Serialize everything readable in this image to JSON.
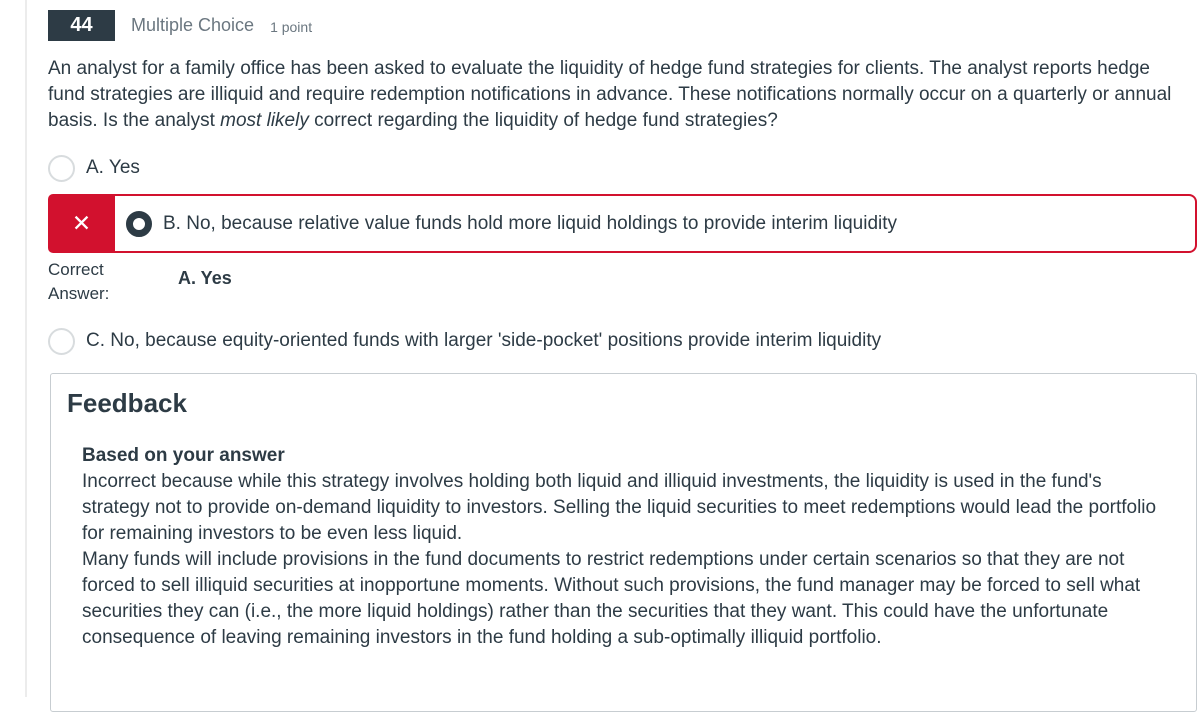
{
  "question_header": {
    "number": "44",
    "type_label": "Multiple Choice",
    "points_label": "1 point"
  },
  "question": {
    "text_before": "An analyst for a family office has been asked to evaluate the liquidity of hedge fund strategies for clients. The analyst reports hedge fund strategies are illiquid and require redemption notifications in advance. These notifications normally occur on a quarterly or annual basis. Is the analyst ",
    "text_italic": "most likely",
    "text_after": " correct regarding the liquidity of hedge fund strategies?"
  },
  "options": {
    "a": {
      "label": "A. Yes",
      "selected": false
    },
    "b": {
      "label": "B. No, because relative value funds hold more liquid holdings to provide interim liquidity",
      "selected": true,
      "status": "incorrect"
    },
    "c": {
      "label": "C. No, because equity-oriented funds with larger 'side-pocket' positions provide interim liquidity",
      "selected": false
    }
  },
  "correct_answer": {
    "label": "Correct Answer:",
    "value": "A. Yes"
  },
  "feedback": {
    "title": "Feedback",
    "subtitle": "Based on your answer",
    "paragraph1": "Incorrect because while this strategy involves holding both liquid and illiquid investments, the liquidity is used in the fund's strategy not to provide on-demand liquidity to investors. Selling the liquid securities to meet redemptions would lead the portfolio for remaining investors to be even less liquid.",
    "paragraph2": "Many funds will include provisions in the fund documents to restrict redemptions under certain scenarios so that they are not forced to sell illiquid securities at inopportune moments. Without such provisions, the fund manager may be forced to sell what securities they can (i.e., the more liquid holdings) rather than the securities that they want. This could have the unfortunate consequence of leaving remaining investors in the fund holding a sub-optimally illiquid portfolio."
  },
  "icons": {
    "incorrect_icon": "✕"
  },
  "colors": {
    "incorrect_red": "#D2112E",
    "badge_background": "#2D3B45",
    "body_text": "#2D3B45",
    "muted_text": "#6B7780",
    "panel_border": "#C7CDD1"
  }
}
